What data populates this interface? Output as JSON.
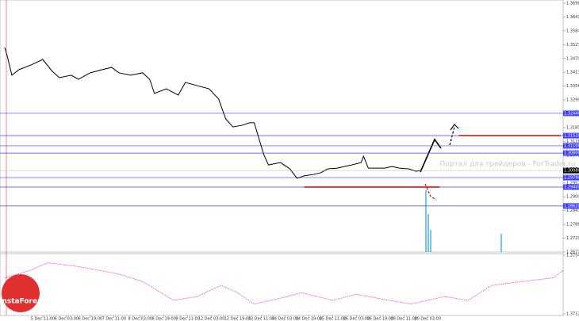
{
  "chart_data": {
    "type": "line",
    "xlim": [
      0,
      237
    ],
    "ylim": [
      1.2672,
      1.3698
    ],
    "yticks": [
      {
        "value": 1.3698,
        "label": "1.36980"
      },
      {
        "value": 1.3641,
        "label": "1.36410"
      },
      {
        "value": 1.3584,
        "label": "1.35840"
      },
      {
        "value": 1.3527,
        "label": "1.35270"
      },
      {
        "value": 1.347,
        "label": "1.34700"
      },
      {
        "value": 1.3413,
        "label": "1.34130"
      },
      {
        "value": 1.3356,
        "label": "1.33560"
      },
      {
        "value": 1.3299,
        "label": "1.32990"
      },
      {
        "value": 1.3242,
        "label": "1.32420"
      },
      {
        "value": 1.3185,
        "label": "1.31850"
      },
      {
        "value": 1.3128,
        "label": "1.31280"
      },
      {
        "value": 1.3071,
        "label": "1.30710"
      },
      {
        "value": 1.3014,
        "label": "1.30140"
      },
      {
        "value": 1.2957,
        "label": "1.29570"
      },
      {
        "value": 1.29,
        "label": "1.29000"
      },
      {
        "value": 1.2843,
        "label": "1.28430"
      },
      {
        "value": 1.2786,
        "label": "1.27860"
      },
      {
        "value": 1.2729,
        "label": "1.27290"
      },
      {
        "value": 1.2672,
        "label": "1.26720"
      }
    ],
    "xticks": [
      {
        "value": 18,
        "label": "5 Dec 11:00"
      },
      {
        "value": 28,
        "label": "6 Dec 03:00"
      },
      {
        "value": 38,
        "label": "6 Dec 19:00"
      },
      {
        "value": 48,
        "label": "7 Dec 11:00"
      },
      {
        "value": 59,
        "label": "8 Dec 03:00"
      },
      {
        "value": 69,
        "label": "8 Dec 19:00"
      },
      {
        "value": 79,
        "label": "9 Dec 11:00"
      },
      {
        "value": 89,
        "label": "12 Dec 03:00"
      },
      {
        "value": 100,
        "label": "12 Dec 19:00"
      },
      {
        "value": 110,
        "label": "13 Dec 11:00"
      },
      {
        "value": 120,
        "label": "14 Dec 03:00"
      },
      {
        "value": 130,
        "label": "14 Dec 19:00"
      },
      {
        "value": 140,
        "label": "15 Dec 11:00"
      },
      {
        "value": 150,
        "label": "16 Dec 03:00"
      },
      {
        "value": 160,
        "label": "16 Dec 19:00"
      },
      {
        "value": 170,
        "label": "19 Dec 11:00"
      },
      {
        "value": 180,
        "label": "20 Dec 03:00"
      }
    ],
    "series": [
      {
        "color": "#000000",
        "x": [
          2,
          3,
          5,
          8,
          13,
          18,
          22,
          25,
          30,
          33,
          38,
          43,
          47,
          50,
          55,
          60,
          63,
          65,
          70,
          75,
          78,
          83,
          88,
          92,
          95,
          98,
          102,
          105,
          107,
          109,
          111,
          113,
          118,
          122,
          125,
          128,
          132,
          135,
          138,
          142,
          145,
          148,
          152,
          153,
          155,
          158,
          162,
          165,
          168,
          172,
          175,
          177
        ],
        "values": [
          1.3515,
          1.3482,
          1.3401,
          1.3424,
          1.3443,
          1.3466,
          1.3417,
          1.3391,
          1.3401,
          1.3384,
          1.3411,
          1.3424,
          1.3433,
          1.3411,
          1.3401,
          1.3411,
          1.3384,
          1.3326,
          1.3345,
          1.3319,
          1.3371,
          1.3358,
          1.3345,
          1.3303,
          1.3221,
          1.3188,
          1.3195,
          1.3205,
          1.3205,
          1.3139,
          1.3074,
          1.3031,
          1.3041,
          1.3015,
          1.2976,
          1.2986,
          1.2992,
          1.2999,
          1.3015,
          1.3018,
          1.3025,
          1.3031,
          1.3041,
          1.3067,
          1.3018,
          1.3018,
          1.3018,
          1.3025,
          1.3018,
          1.3015,
          1.3005,
          1.3008
        ]
      }
    ],
    "current": {
      "value": 1.3008,
      "label": "1.30080"
    },
    "levels": {
      "color": "#4040ff",
      "values": [
        1.3244,
        1.3152,
        1.311,
        1.308,
        1.2979,
        1.294,
        1.2862
      ],
      "value_labels": [
        "1.32440",
        "1.31520",
        "1.31100",
        "1.30800",
        "1.29790",
        "1.29400",
        "1.28620"
      ]
    },
    "red_levels": [
      {
        "value": 1.3152,
        "x": [
          193,
          236
        ]
      },
      {
        "value": 1.294,
        "x": [
          128,
          185
        ]
      }
    ],
    "red_color": "#e00000",
    "indicator": {
      "color": "#e040e0",
      "ylim": [
        1.37128,
        1.37547
      ],
      "yticks": [
        1.37547,
        1.37128
      ],
      "x": [
        2,
        13,
        20,
        33,
        50,
        60,
        73,
        83,
        93,
        100,
        107,
        117,
        127,
        140,
        150,
        160,
        173,
        187,
        197,
        207,
        220,
        233,
        237
      ],
      "values": [
        1.37386,
        1.3744,
        1.37493,
        1.37466,
        1.37413,
        1.37359,
        1.37225,
        1.37252,
        1.37332,
        1.37279,
        1.37198,
        1.37236,
        1.37279,
        1.37225,
        1.37268,
        1.37236,
        1.37198,
        1.37252,
        1.37225,
        1.37332,
        1.37359,
        1.37386,
        1.3744
      ]
    },
    "annotations": [
      "Портал для трейдеров - ForTrader.ru",
      "InstaForex"
    ]
  }
}
